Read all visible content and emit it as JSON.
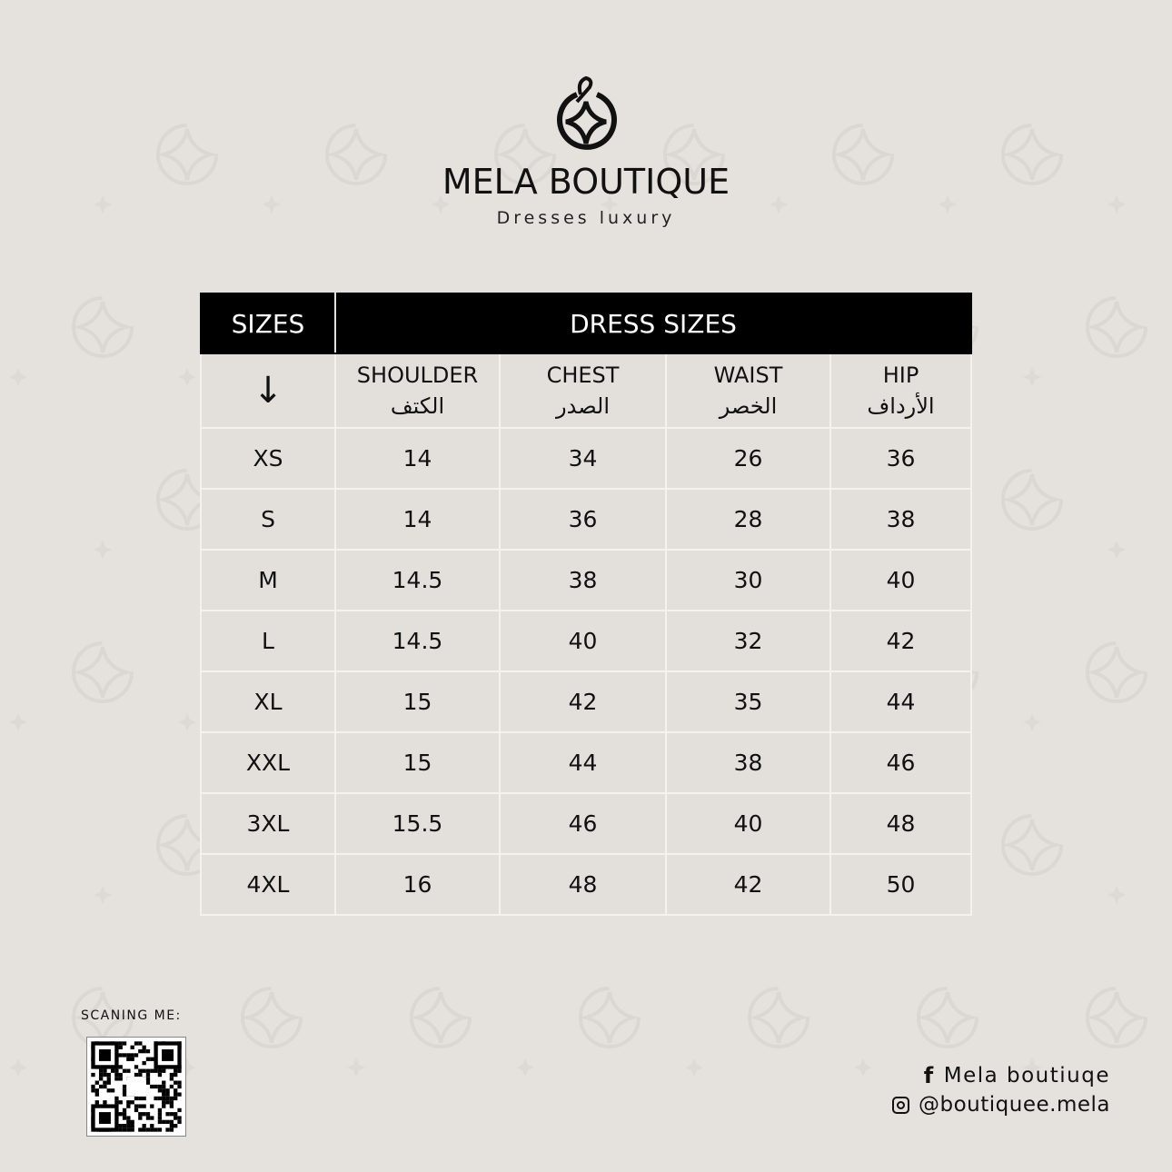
{
  "brand": {
    "name": "MELA BOUTIQUE",
    "tagline": "Dresses luxury"
  },
  "table": {
    "header_sizes": "SIZES",
    "header_group": "DRESS SIZES",
    "arrow": "↓",
    "columns": [
      {
        "en": "SHOULDER",
        "ar": "الكتف"
      },
      {
        "en": "CHEST",
        "ar": "الصدر"
      },
      {
        "en": "WAIST",
        "ar": "الخصر"
      },
      {
        "en": "HIP",
        "ar": "الأرداف"
      }
    ],
    "rows": [
      [
        "XS",
        "14",
        "34",
        "26",
        "36"
      ],
      [
        "S",
        "14",
        "36",
        "28",
        "38"
      ],
      [
        "M",
        "14.5",
        "38",
        "30",
        "40"
      ],
      [
        "L",
        "14.5",
        "40",
        "32",
        "42"
      ],
      [
        "XL",
        "15",
        "42",
        "35",
        "44"
      ],
      [
        "XXL",
        "15",
        "44",
        "38",
        "46"
      ],
      [
        "3XL",
        "15.5",
        "46",
        "40",
        "48"
      ],
      [
        "4XL",
        "16",
        "48",
        "42",
        "50"
      ]
    ]
  },
  "footer": {
    "qr_label": "SCANING ME:",
    "facebook": "Mela boutiuqe",
    "instagram": "@boutiquee.mela"
  }
}
